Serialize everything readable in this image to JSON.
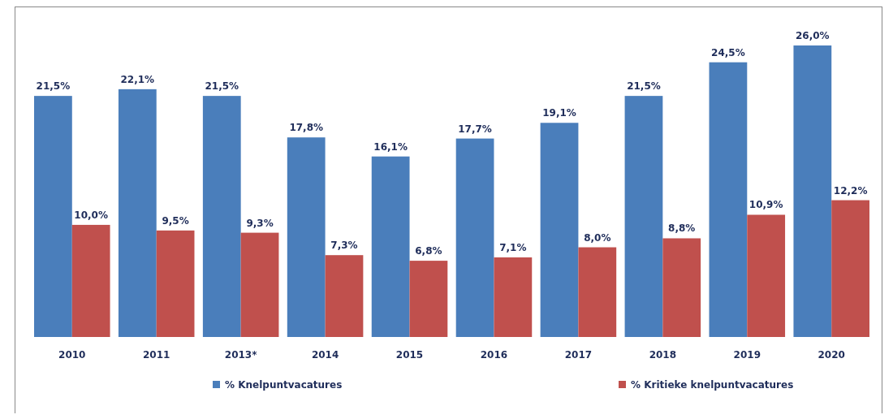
{
  "chart_data": {
    "type": "bar",
    "categories": [
      "2010",
      "2011",
      "2013*",
      "2014",
      "2015",
      "2016",
      "2017",
      "2018",
      "2019",
      "2020"
    ],
    "series": [
      {
        "name": "% Knelpuntvacatures",
        "color": "#4a7ebb",
        "values": [
          21.5,
          22.1,
          21.5,
          17.8,
          16.1,
          17.7,
          19.1,
          21.5,
          24.5,
          26.0
        ],
        "value_labels": [
          "21,5%",
          "22,1%",
          "21,5%",
          "17,8%",
          "16,1%",
          "17,7%",
          "19,1%",
          "21,5%",
          "24,5%",
          "26,0%"
        ]
      },
      {
        "name": "% Kritieke knelpuntvacatures",
        "color": "#c0504d",
        "values": [
          10.0,
          9.5,
          9.3,
          7.3,
          6.8,
          7.1,
          8.0,
          8.8,
          10.9,
          12.2
        ],
        "value_labels": [
          "10,0%",
          "9,5%",
          "9,3%",
          "7,3%",
          "6,8%",
          "7,1%",
          "8,0%",
          "8,8%",
          "10,9%",
          "12,2%"
        ]
      }
    ],
    "legend": "bottom",
    "grid": false
  }
}
